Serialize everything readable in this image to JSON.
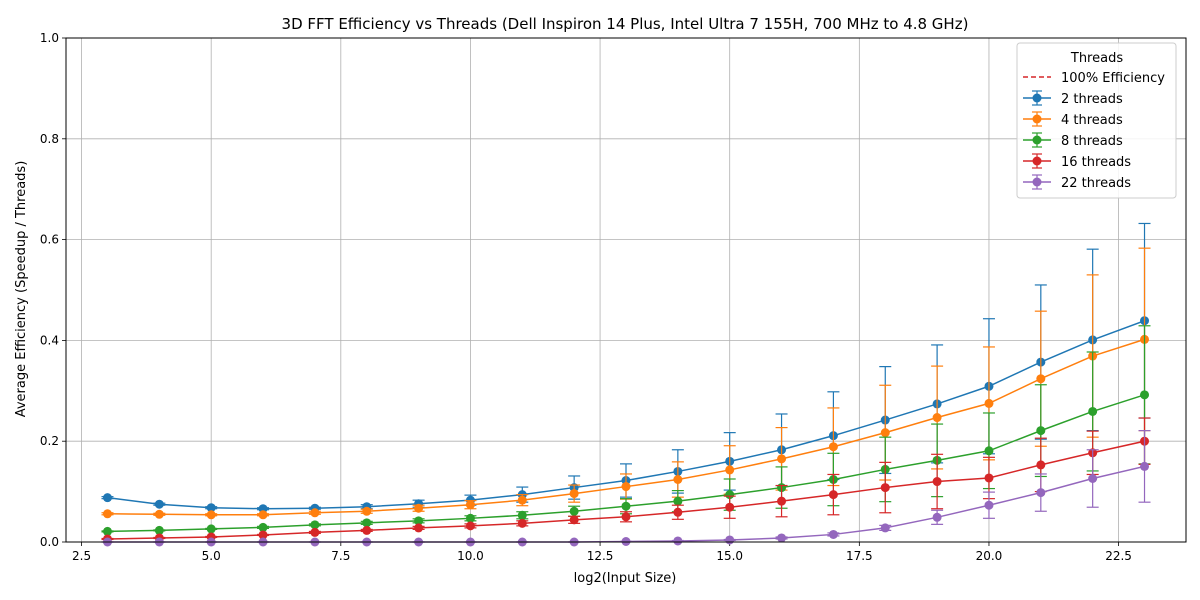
{
  "chart_data": {
    "type": "line",
    "title": "3D FFT Efficiency vs Threads (Dell Inspiron 14 Plus, Intel Ultra 7 155H, 700 MHz to 4.8 GHz)",
    "xlabel": "log2(Input Size)",
    "ylabel": "Average Efficiency (Speedup / Threads)",
    "xlim": [
      2.2,
      23.8
    ],
    "ylim": [
      0,
      1.0
    ],
    "xticks": [
      2.5,
      5.0,
      7.5,
      10.0,
      12.5,
      15.0,
      17.5,
      20.0,
      22.5
    ],
    "xtick_labels": [
      "2.5",
      "5.0",
      "7.5",
      "10.0",
      "12.5",
      "15.0",
      "17.5",
      "20.0",
      "22.5"
    ],
    "yticks": [
      0.0,
      0.2,
      0.4,
      0.6,
      0.8,
      1.0
    ],
    "ytick_labels": [
      "0.0",
      "0.2",
      "0.4",
      "0.6",
      "0.8",
      "1.0"
    ],
    "grid": true,
    "legend": {
      "title": "Threads",
      "placement": "top-right",
      "reference_label": "100% Efficiency",
      "reference_color": "#d62728"
    },
    "x": [
      3,
      4,
      5,
      6,
      7,
      8,
      9,
      10,
      11,
      12,
      13,
      14,
      15,
      16,
      17,
      18,
      19,
      20,
      21,
      22,
      23
    ],
    "series": [
      {
        "name": "2 threads",
        "color": "#1f77b4",
        "values": [
          0.088,
          0.075,
          0.068,
          0.066,
          0.067,
          0.07,
          0.076,
          0.083,
          0.094,
          0.108,
          0.122,
          0.14,
          0.16,
          0.183,
          0.211,
          0.242,
          0.274,
          0.309,
          0.357,
          0.401,
          0.439
        ],
        "errors": [
          0.002,
          0.002,
          0.002,
          0.002,
          0.002,
          0.004,
          0.007,
          0.01,
          0.015,
          0.023,
          0.033,
          0.043,
          0.057,
          0.071,
          0.087,
          0.106,
          0.117,
          0.134,
          0.153,
          0.18,
          0.193
        ]
      },
      {
        "name": "4 threads",
        "color": "#ff7f0e",
        "values": [
          0.056,
          0.055,
          0.054,
          0.054,
          0.058,
          0.061,
          0.067,
          0.074,
          0.083,
          0.096,
          0.11,
          0.124,
          0.143,
          0.165,
          0.189,
          0.217,
          0.247,
          0.275,
          0.324,
          0.369,
          0.402
        ],
        "errors": [
          0.002,
          0.002,
          0.002,
          0.002,
          0.003,
          0.004,
          0.006,
          0.008,
          0.011,
          0.017,
          0.025,
          0.035,
          0.048,
          0.062,
          0.077,
          0.094,
          0.102,
          0.112,
          0.134,
          0.161,
          0.181
        ]
      },
      {
        "name": "8 threads",
        "color": "#2ca02c",
        "values": [
          0.021,
          0.023,
          0.026,
          0.029,
          0.034,
          0.038,
          0.042,
          0.047,
          0.053,
          0.061,
          0.071,
          0.081,
          0.094,
          0.108,
          0.124,
          0.144,
          0.162,
          0.181,
          0.221,
          0.259,
          0.292
        ],
        "errors": [
          0.001,
          0.001,
          0.001,
          0.002,
          0.002,
          0.003,
          0.004,
          0.005,
          0.007,
          0.01,
          0.015,
          0.021,
          0.031,
          0.041,
          0.052,
          0.064,
          0.072,
          0.075,
          0.091,
          0.118,
          0.137
        ]
      },
      {
        "name": "16 threads",
        "color": "#d62728",
        "values": [
          0.006,
          0.008,
          0.01,
          0.014,
          0.019,
          0.023,
          0.028,
          0.032,
          0.037,
          0.044,
          0.05,
          0.059,
          0.069,
          0.081,
          0.094,
          0.108,
          0.12,
          0.127,
          0.153,
          0.177,
          0.2
        ],
        "errors": [
          0.001,
          0.001,
          0.001,
          0.001,
          0.002,
          0.002,
          0.003,
          0.004,
          0.005,
          0.007,
          0.01,
          0.014,
          0.022,
          0.031,
          0.04,
          0.05,
          0.054,
          0.041,
          0.053,
          0.043,
          0.046
        ]
      },
      {
        "name": "22 threads",
        "color": "#9467bd",
        "values": [
          0.0,
          0.0,
          0.0,
          0.0,
          0.0,
          0.0,
          0.0,
          0.0,
          0.0,
          0.0,
          0.001,
          0.002,
          0.004,
          0.008,
          0.015,
          0.028,
          0.049,
          0.073,
          0.098,
          0.126,
          0.15
        ],
        "errors": [
          0.0,
          0.0,
          0.0,
          0.0,
          0.0,
          0.0,
          0.0,
          0.0,
          0.0,
          0.0,
          0.0,
          0.001,
          0.001,
          0.002,
          0.003,
          0.005,
          0.014,
          0.026,
          0.037,
          0.057,
          0.071
        ]
      }
    ]
  }
}
